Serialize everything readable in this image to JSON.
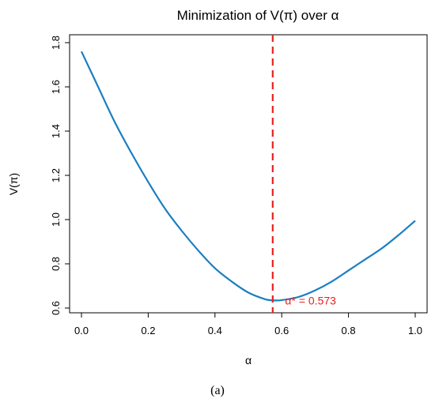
{
  "chart_data": {
    "type": "line",
    "title": "Minimization of V(π) over α",
    "xlabel": "α",
    "ylabel": "V(π)",
    "xlim": [
      0.0,
      1.0
    ],
    "ylim": [
      0.6,
      1.8
    ],
    "x_ticks": [
      "0.0",
      "0.2",
      "0.4",
      "0.6",
      "0.8",
      "1.0"
    ],
    "y_ticks": [
      "0.6",
      "0.8",
      "1.0",
      "1.2",
      "1.4",
      "1.6",
      "1.8"
    ],
    "series": [
      {
        "color": "#1a7fc1",
        "points": [
          [
            0.0,
            1.76
          ],
          [
            0.05,
            1.6
          ],
          [
            0.1,
            1.44
          ],
          [
            0.15,
            1.3
          ],
          [
            0.2,
            1.17
          ],
          [
            0.25,
            1.05
          ],
          [
            0.3,
            0.95
          ],
          [
            0.35,
            0.86
          ],
          [
            0.4,
            0.78
          ],
          [
            0.45,
            0.72
          ],
          [
            0.5,
            0.67
          ],
          [
            0.55,
            0.64
          ],
          [
            0.573,
            0.635
          ],
          [
            0.6,
            0.636
          ],
          [
            0.65,
            0.65
          ],
          [
            0.7,
            0.68
          ],
          [
            0.75,
            0.72
          ],
          [
            0.8,
            0.77
          ],
          [
            0.85,
            0.82
          ],
          [
            0.9,
            0.87
          ],
          [
            0.95,
            0.93
          ],
          [
            1.0,
            0.995
          ]
        ]
      }
    ],
    "vline": {
      "x": 0.573,
      "color": "#e8211f",
      "style": "dashed"
    },
    "annotation": {
      "text": "α* = 0.573",
      "x": 0.61,
      "y": 0.63,
      "color": "#e8211f"
    },
    "grid": false
  },
  "caption": "(a)"
}
